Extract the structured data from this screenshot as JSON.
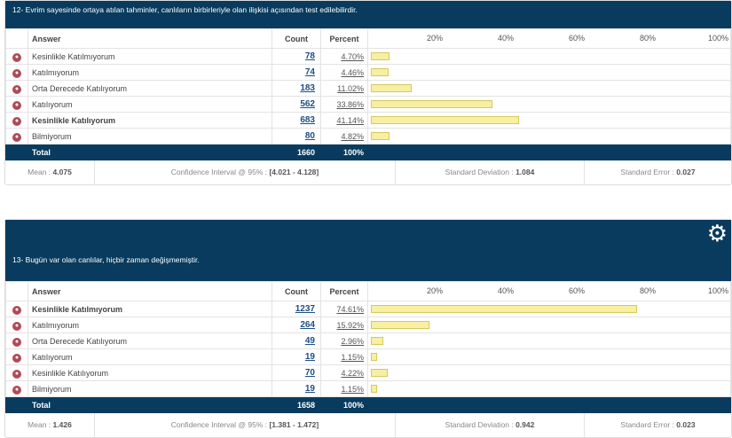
{
  "scale_labels": [
    "20%",
    "40%",
    "60%",
    "80%",
    "100%"
  ],
  "columns": {
    "answer": "Answer",
    "count": "Count",
    "percent": "Percent"
  },
  "questions": [
    {
      "title": "12- Evrim sayesinde ortaya atılan tahminler, canlıların birbirleriyle olan ilişkisi açısından test edilebilirdir.",
      "rows": [
        {
          "label": "Kesinlikle Katılmıyorum",
          "count": "78",
          "percent": "4.70%",
          "value": 4.7
        },
        {
          "label": "Katılmıyorum",
          "count": "74",
          "percent": "4.46%",
          "value": 4.46
        },
        {
          "label": "Orta Derecede Katılıyorum",
          "count": "183",
          "percent": "11.02%",
          "value": 11.02
        },
        {
          "label": "Katılıyorum",
          "count": "562",
          "percent": "33.86%",
          "value": 33.86
        },
        {
          "label": "Kesinlikle Katılıyorum",
          "count": "683",
          "percent": "41.14%",
          "value": 41.14,
          "bold": true
        },
        {
          "label": "Bilmiyorum",
          "count": "80",
          "percent": "4.82%",
          "value": 4.82
        }
      ],
      "total": {
        "label": "Total",
        "count": "1660",
        "percent": "100%"
      },
      "stats": {
        "mean_label": "Mean :",
        "mean": "4.075",
        "ci_label": "Confidence Interval @ 95% :",
        "ci": "[4.021 - 4.128]",
        "sd_label": "Standard Deviation :",
        "sd": "1.084",
        "se_label": "Standard Error :",
        "se": "0.027"
      }
    },
    {
      "title": "13- Bugün var olan canlılar, hiçbir zaman değişmemiştir.",
      "rows": [
        {
          "label": "Kesinlikle Katılmıyorum",
          "count": "1237",
          "percent": "74.61%",
          "value": 74.61,
          "bold": true
        },
        {
          "label": "Katılmıyorum",
          "count": "264",
          "percent": "15.92%",
          "value": 15.92
        },
        {
          "label": "Orta Derecede Katılıyorum",
          "count": "49",
          "percent": "2.96%",
          "value": 2.96
        },
        {
          "label": "Katılıyorum",
          "count": "19",
          "percent": "1.15%",
          "value": 1.15
        },
        {
          "label": "Kesinlikle Katılıyorum",
          "count": "70",
          "percent": "4.22%",
          "value": 4.22
        },
        {
          "label": "Bilmiyorum",
          "count": "19",
          "percent": "1.15%",
          "value": 1.15
        }
      ],
      "total": {
        "label": "Total",
        "count": "1658",
        "percent": "100%"
      },
      "stats": {
        "mean_label": "Mean :",
        "mean": "1.426",
        "ci_label": "Confidence Interval @ 95% :",
        "ci": "[1.381 - 1.472]",
        "sd_label": "Standard Deviation :",
        "sd": "0.942",
        "se_label": "Standard Error :",
        "se": "0.023"
      }
    }
  ]
}
